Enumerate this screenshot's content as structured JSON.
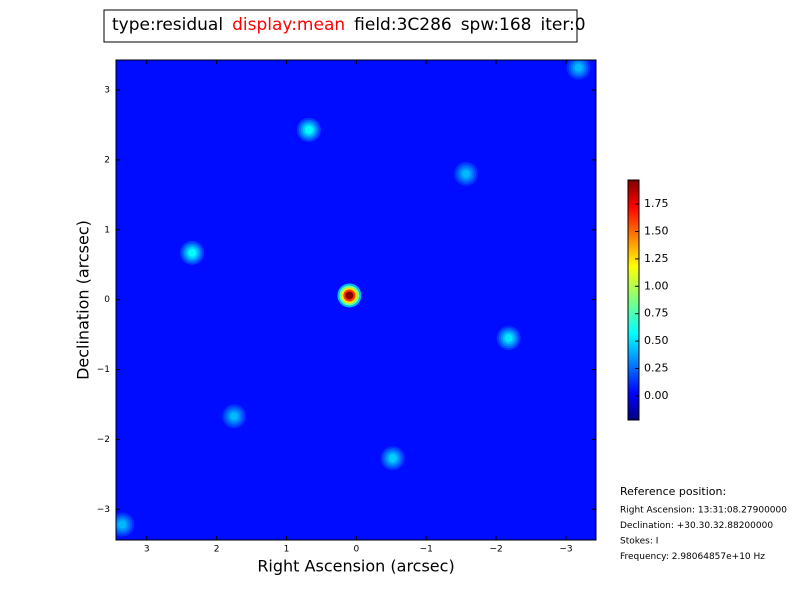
{
  "chart_data": {
    "type": "image",
    "title_items": [
      {
        "text": "type:residual",
        "color": "#000000"
      },
      {
        "text": "display:mean",
        "color": "#ff0000"
      },
      {
        "text": "field:3C286",
        "color": "#000000"
      },
      {
        "text": "spw:168",
        "color": "#000000"
      },
      {
        "text": "iter:0",
        "color": "#000000"
      }
    ],
    "x_label": "Right Ascension (arcsec)",
    "y_label": "Declination (arcsec)",
    "xlim": [
      3.44,
      -3.43
    ],
    "ylim": [
      -3.44,
      3.43
    ],
    "xticks": [
      3,
      2,
      1,
      0,
      {
        "value": -1,
        "label": "−1"
      },
      {
        "value": -2,
        "label": "−2"
      },
      {
        "value": -3,
        "label": "−3"
      }
    ],
    "yticks": [
      {
        "value": -3,
        "label": "−3"
      },
      {
        "value": -2,
        "label": "−2"
      },
      {
        "value": -1,
        "label": "−1"
      },
      0,
      1,
      2,
      3
    ],
    "colormap": "jet",
    "clim": [
      -0.22,
      1.97
    ],
    "cticks": [
      {
        "value": 0,
        "label": "0.00"
      },
      {
        "value": 0.25,
        "label": "0.25"
      },
      {
        "value": 0.5,
        "label": "0.50"
      },
      {
        "value": 0.75,
        "label": "0.75"
      },
      {
        "value": 1,
        "label": "1.00"
      },
      {
        "value": 1.25,
        "label": "1.25"
      },
      {
        "value": 1.5,
        "label": "1.50"
      },
      {
        "value": 1.75,
        "label": "1.75"
      }
    ],
    "background_value": 0.08,
    "sources": [
      {
        "x": 0.1,
        "y": 0.06,
        "value": 1.95
      },
      {
        "x": 0.68,
        "y": 2.43,
        "value": 0.6
      },
      {
        "x": 2.35,
        "y": 0.67,
        "value": 0.6
      },
      {
        "x": -2.18,
        "y": -0.55,
        "value": 0.55
      },
      {
        "x": -1.57,
        "y": 1.8,
        "value": 0.45
      },
      {
        "x": -0.52,
        "y": -2.27,
        "value": 0.5
      },
      {
        "x": 1.75,
        "y": -1.67,
        "value": 0.45
      },
      {
        "x": 3.35,
        "y": -3.22,
        "value": 0.45
      },
      {
        "x": -3.18,
        "y": 3.32,
        "value": 0.45
      }
    ],
    "reference": {
      "heading": "Reference position:",
      "lines": [
        "Right Ascension: 13:31:08.27900000",
        "Declination: +30.30.32.88200000",
        "Stokes: I",
        "Frequency: 2.98064857e+10 Hz"
      ]
    }
  }
}
